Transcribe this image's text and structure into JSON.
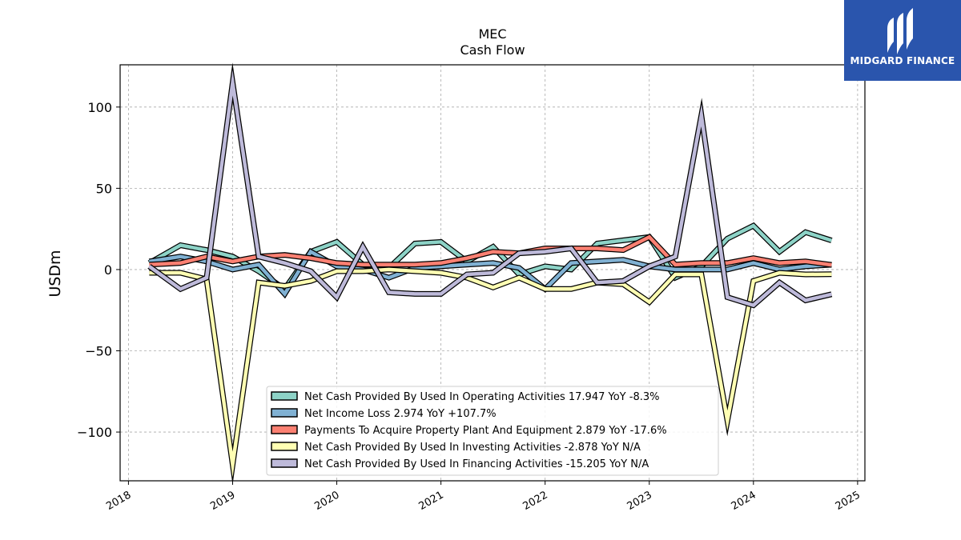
{
  "chart_data": {
    "type": "line",
    "title": "MEC",
    "subtitle": "Cash Flow",
    "ylabel": "USDm",
    "xlabel": "",
    "ylim": [
      -130,
      126
    ],
    "xlim": [
      2017.92,
      2025.07
    ],
    "yticks": [
      -100,
      -50,
      0,
      50,
      100
    ],
    "yticklabels": [
      "−100",
      "−50",
      "0",
      "50",
      "100"
    ],
    "xticks": [
      2018,
      2019,
      2020,
      2021,
      2022,
      2023,
      2024,
      2025
    ],
    "xticklabels": [
      "2018",
      "2019",
      "2020",
      "2021",
      "2022",
      "2023",
      "2024",
      "2025"
    ],
    "grid": true,
    "legend_position": "lower-center",
    "x": [
      2018.2,
      2018.5,
      2018.75,
      2019.0,
      2019.25,
      2019.5,
      2019.75,
      2020.0,
      2020.25,
      2020.5,
      2020.75,
      2021.0,
      2021.25,
      2021.5,
      2021.75,
      2022.0,
      2022.25,
      2022.5,
      2022.75,
      2023.0,
      2023.25,
      2023.5,
      2023.75,
      2024.0,
      2024.25,
      2024.5,
      2024.75
    ],
    "series": [
      {
        "name": "Net Cash Provided By Used In Operating Activities  17.947 YoY -8.3%",
        "color": "#8dd3c7",
        "values": [
          4,
          15,
          12,
          8,
          -1,
          -12,
          11,
          17,
          3,
          1,
          16,
          17,
          5,
          14,
          -3,
          2,
          0,
          16,
          18,
          20,
          -5,
          2,
          19,
          27,
          11,
          23,
          17.9
        ]
      },
      {
        "name": "Net Income Loss  2.974 YoY +107.7%",
        "color": "#80b1d3",
        "values": [
          5,
          8,
          5,
          0,
          3,
          -15,
          11,
          2,
          0,
          -5,
          1,
          2,
          3,
          4,
          1,
          -12,
          4,
          5,
          6,
          2,
          0,
          0,
          0,
          4,
          0,
          2,
          2.97
        ]
      },
      {
        "name": "Payments To Acquire Property Plant And Equipment  2.879 YoY -17.6%",
        "color": "#fb8072",
        "values": [
          3,
          4,
          8,
          5,
          8,
          9,
          7,
          4,
          3,
          3,
          3,
          4,
          7,
          11,
          10,
          13,
          13,
          13,
          12,
          20,
          3,
          4,
          4,
          7,
          4,
          5,
          2.88
        ]
      },
      {
        "name": "Net Cash Provided By Used In Investing Activities  -2.878 YoY N/A",
        "color": "#ffffb3",
        "values": [
          -2,
          -2,
          -6,
          -120,
          -8,
          -10,
          -7,
          -1,
          -1,
          0,
          -1,
          -2,
          -5,
          -11,
          -5,
          -12,
          -12,
          -8,
          -9,
          -20,
          -3,
          -3,
          -93,
          -7,
          -2,
          -3,
          -2.88
        ]
      },
      {
        "name": "Net Cash Provided By Used In Financing Activities  -15.205 YoY N/A",
        "color": "#bebada",
        "values": [
          2,
          -12,
          -5,
          115,
          8,
          4,
          -1,
          -17,
          14,
          -14,
          -15,
          -15,
          -3,
          -2,
          10,
          11,
          13,
          -8,
          -7,
          2,
          8,
          95,
          -17,
          -22,
          -8,
          -19,
          -15.2
        ]
      }
    ]
  },
  "logo": {
    "text": "MIDGARD FINANCE"
  }
}
